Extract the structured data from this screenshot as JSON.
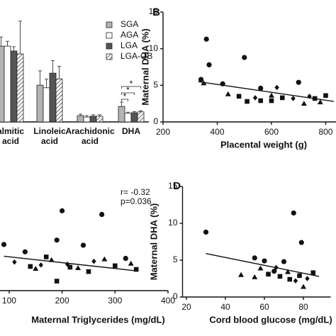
{
  "chart_data": [
    {
      "type": "bar",
      "categories": [
        "almitic acid",
        "Linoleic acid",
        "Arachidonic acid",
        "DHA"
      ],
      "ylim": [
        0,
        40
      ],
      "series": [
        {
          "name": "SGA",
          "color": "#b3b3b3",
          "values": [
            26.4,
            12.8,
            2.2,
            5.4
          ],
          "errors": [
            3.2,
            5.0,
            0.5,
            1.5
          ]
        },
        {
          "name": "AGA",
          "color": "#ffffff",
          "values": [
            26.4,
            11.9,
            1.7,
            3.0
          ],
          "errors": [
            1.7,
            3.0,
            0.5,
            0.4
          ]
        },
        {
          "name": "LGA",
          "color": "#555555",
          "values": [
            24.7,
            17.0,
            2.0,
            3.2
          ],
          "errors": [
            1.5,
            4.4,
            0.5,
            0.4
          ]
        },
        {
          "name": "LGA-OB",
          "color": "#ffffff",
          "pattern": "hatch",
          "values": [
            23.7,
            15.0,
            2.0,
            3.5
          ],
          "errors": [
            11.4,
            4.4,
            0.5,
            0.4
          ]
        }
      ],
      "significance_labels": [
        "*",
        "*",
        "*"
      ]
    },
    {
      "type": "scatter",
      "panel_label": "B",
      "xlabel": "Placental weight (g)",
      "ylabel": "Maternal DHA (%)",
      "xlim": [
        200,
        850
      ],
      "ylim": [
        0,
        15
      ],
      "xticks": [
        200,
        400,
        600,
        800
      ],
      "yticks": [
        0,
        5,
        10,
        15
      ],
      "series": [
        {
          "marker": "circle",
          "x": [
            360,
            370,
            500,
            340,
            420,
            560,
            700
          ],
          "y": [
            11.3,
            7.8,
            8.8,
            5.8,
            5.2,
            4.6,
            5.4
          ]
        },
        {
          "marker": "square",
          "x": [
            510,
            560,
            600,
            640,
            760,
            800,
            480
          ],
          "y": [
            2.8,
            2.9,
            2.9,
            3.3,
            3.2,
            3.6,
            3.5
          ]
        },
        {
          "marker": "triangle",
          "x": [
            440,
            600,
            720,
            780,
            350
          ],
          "y": [
            3.8,
            3.6,
            2.5,
            2.7,
            5.3
          ]
        },
        {
          "marker": "diamond",
          "x": [
            620,
            680,
            540,
            740
          ],
          "y": [
            4.7,
            3.2,
            3.3,
            3.5
          ]
        }
      ],
      "fit": {
        "x": [
          330,
          830
        ],
        "y": [
          5.5,
          2.8
        ]
      }
    },
    {
      "type": "scatter",
      "xlabel": "Maternal Triglycerides (mg/dL)",
      "xlim": [
        80,
        400
      ],
      "ylim": [
        0,
        15
      ],
      "xticks": [
        100,
        200,
        300,
        400
      ],
      "annotations": [
        "r= -0.32",
        "p=0.036"
      ],
      "series": [
        {
          "marker": "circle",
          "x": [
            200,
            275,
            190,
            90,
            130,
            240,
            320
          ],
          "y": [
            10.9,
            10.4,
            6.9,
            6.3,
            5.3,
            6.2,
            4.4
          ]
        },
        {
          "marker": "square",
          "x": [
            170,
            215,
            190,
            250,
            300,
            340,
            140
          ],
          "y": [
            4.6,
            3.2,
            1.3,
            2.6,
            3.4,
            2.9,
            3.3
          ]
        },
        {
          "marker": "triangle",
          "x": [
            150,
            230,
            280,
            180,
            330
          ],
          "y": [
            3.0,
            3.1,
            4.3,
            4.2,
            3.7
          ]
        },
        {
          "marker": "diamond",
          "x": [
            160,
            260,
            110,
            210
          ],
          "y": [
            3.5,
            4.0,
            3.9,
            3.6
          ]
        }
      ],
      "fit": {
        "x": [
          90,
          340
        ],
        "y": [
          4.7,
          2.7
        ]
      }
    },
    {
      "type": "scatter",
      "panel_label": "D",
      "xlabel": "Cord blood glucose (mg/dL)",
      "ylabel": "Maternal DHA (%)",
      "xlim": [
        18,
        94
      ],
      "ylim": [
        0,
        15
      ],
      "xticks": [
        20,
        40,
        60,
        80
      ],
      "yticks": [
        0,
        5,
        10,
        15
      ],
      "series": [
        {
          "marker": "circle",
          "x": [
            30,
            75,
            79,
            55,
            60,
            70,
            65
          ],
          "y": [
            8.8,
            11.4,
            7.4,
            5.3,
            4.9,
            4.8,
            3.5
          ]
        },
        {
          "marker": "square",
          "x": [
            68,
            73,
            78,
            62,
            85
          ],
          "y": [
            2.8,
            2.4,
            2.9,
            3.1,
            3.3
          ]
        },
        {
          "marker": "triangle",
          "x": [
            48,
            55,
            72,
            80,
            58
          ],
          "y": [
            3.0,
            2.7,
            3.4,
            1.4,
            3.9
          ]
        },
        {
          "marker": "diamond",
          "x": [
            76,
            66,
            82
          ],
          "y": [
            2.2,
            4.0,
            2.5
          ]
        }
      ],
      "fit": {
        "x": [
          30,
          88
        ],
        "y": [
          5.9,
          2.8
        ]
      }
    }
  ]
}
